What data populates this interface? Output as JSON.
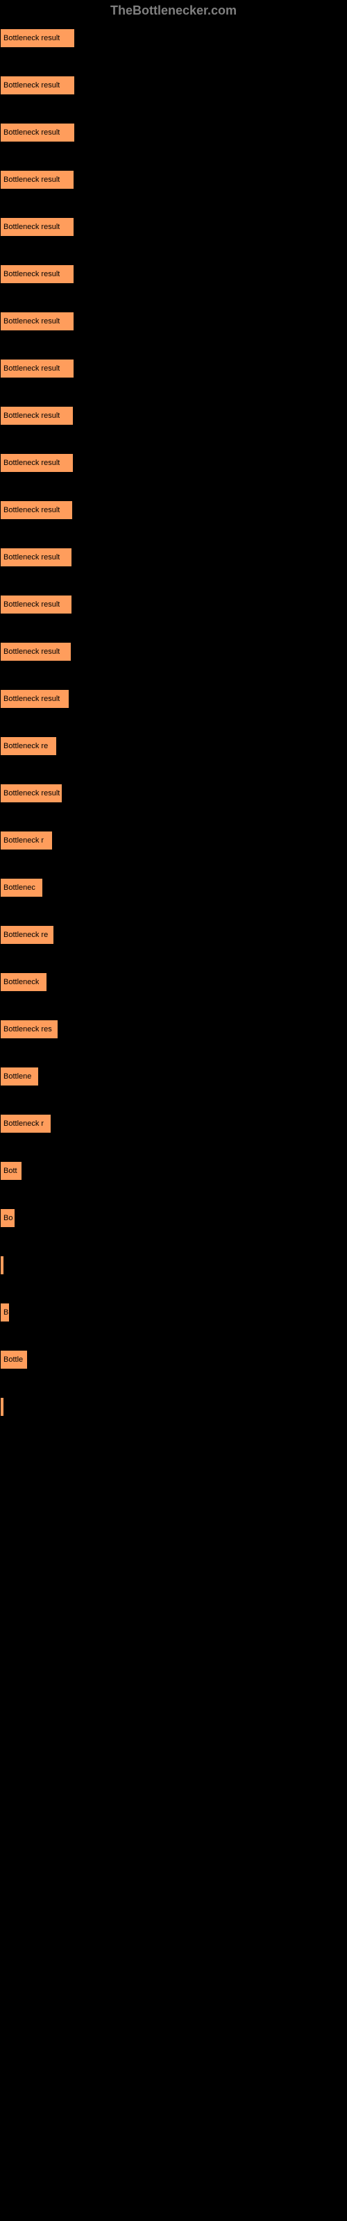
{
  "header": {
    "title": "TheBottlenecker.com"
  },
  "chart": {
    "type": "bar",
    "bar_color": "#ff9d5c",
    "bar_border_color": "#000000",
    "background_color": "#000000",
    "label_color": "#000000",
    "label_fontsize": 11,
    "max_width": 500,
    "bars": [
      {
        "label": "Bottleneck result",
        "width": 108
      },
      {
        "label": "Bottleneck result",
        "width": 108
      },
      {
        "label": "Bottleneck result",
        "width": 108
      },
      {
        "label": "Bottleneck result",
        "width": 107
      },
      {
        "label": "Bottleneck result",
        "width": 107
      },
      {
        "label": "Bottleneck result",
        "width": 107
      },
      {
        "label": "Bottleneck result",
        "width": 107
      },
      {
        "label": "Bottleneck result",
        "width": 107
      },
      {
        "label": "Bottleneck result",
        "width": 106
      },
      {
        "label": "Bottleneck result",
        "width": 106
      },
      {
        "label": "Bottleneck result",
        "width": 105
      },
      {
        "label": "Bottleneck result",
        "width": 104
      },
      {
        "label": "Bottleneck result",
        "width": 104
      },
      {
        "label": "Bottleneck result",
        "width": 103
      },
      {
        "label": "Bottleneck result",
        "width": 100
      },
      {
        "label": "Bottleneck re",
        "width": 82
      },
      {
        "label": "Bottleneck result",
        "width": 90
      },
      {
        "label": "Bottleneck r",
        "width": 76
      },
      {
        "label": "Bottlenec",
        "width": 62
      },
      {
        "label": "Bottleneck re",
        "width": 78
      },
      {
        "label": "Bottleneck",
        "width": 68
      },
      {
        "label": "Bottleneck res",
        "width": 84
      },
      {
        "label": "Bottlene",
        "width": 56
      },
      {
        "label": "Bottleneck r",
        "width": 74
      },
      {
        "label": "Bott",
        "width": 32
      },
      {
        "label": "Bo",
        "width": 22
      },
      {
        "label": "",
        "width": 4
      },
      {
        "label": "B",
        "width": 14
      },
      {
        "label": "Bottle",
        "width": 40
      },
      {
        "label": "",
        "width": 3
      }
    ]
  }
}
